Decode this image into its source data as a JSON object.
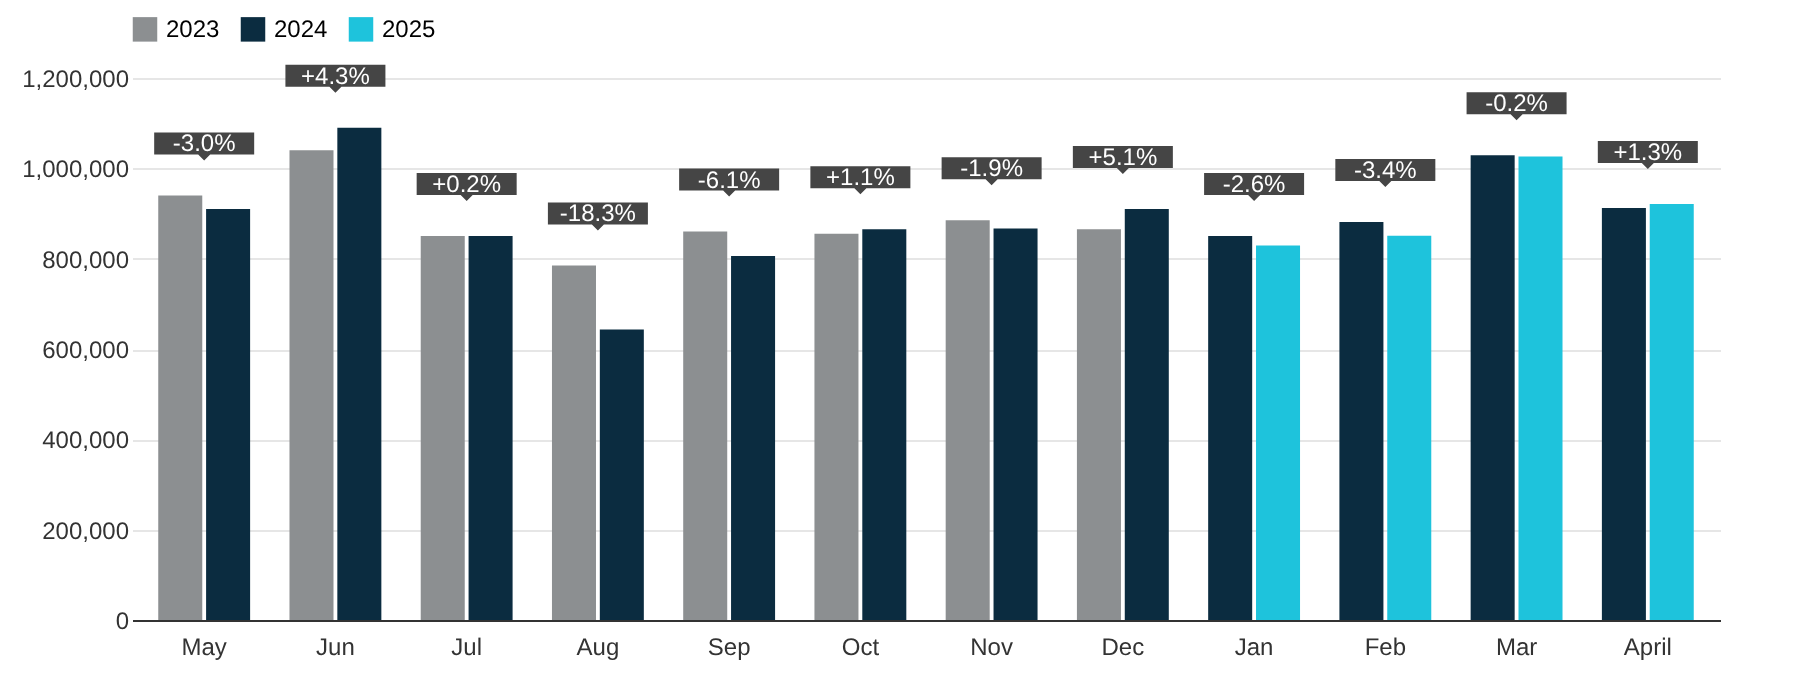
{
  "chart_data": {
    "type": "bar",
    "categories": [
      "May",
      "Jun",
      "Jul",
      "Aug",
      "Sep",
      "Oct",
      "Nov",
      "Dec",
      "Jan",
      "Feb",
      "Mar",
      "April"
    ],
    "series": [
      {
        "name": "2023",
        "color": "#8c8f91",
        "values": [
          940000,
          1040000,
          850000,
          785000,
          860000,
          855000,
          885000,
          865000,
          null,
          null,
          null,
          null
        ]
      },
      {
        "name": "2024",
        "color": "#0b2c40",
        "values": [
          910000,
          1090000,
          850000,
          643000,
          806000,
          865000,
          867000,
          910000,
          850000,
          881000,
          1029000,
          912000
        ]
      },
      {
        "name": "2025",
        "color": "#1ec3dc",
        "values": [
          null,
          null,
          null,
          null,
          null,
          null,
          null,
          null,
          829000,
          851000,
          1026000,
          921000
        ]
      }
    ],
    "annotations": [
      "-3.0%",
      "+4.3%",
      "+0.2%",
      "-18.3%",
      "-6.1%",
      "+1.1%",
      "-1.9%",
      "+5.1%",
      "-2.6%",
      "-3.4%",
      "-0.2%",
      "+1.3%"
    ],
    "ylim": [
      0,
      1200000
    ],
    "yticks": [
      0,
      {
        "value": 200000,
        "label": "200,000"
      },
      {
        "value": 400000,
        "label": "400,000"
      },
      {
        "value": 600000,
        "label": "600,000"
      },
      {
        "value": 800000,
        "label": "800,000"
      },
      {
        "value": 1000000,
        "label": "1,000,000"
      },
      {
        "value": 1200000,
        "label": "1,200,000"
      }
    ],
    "grid": "y",
    "legend": "top left"
  }
}
